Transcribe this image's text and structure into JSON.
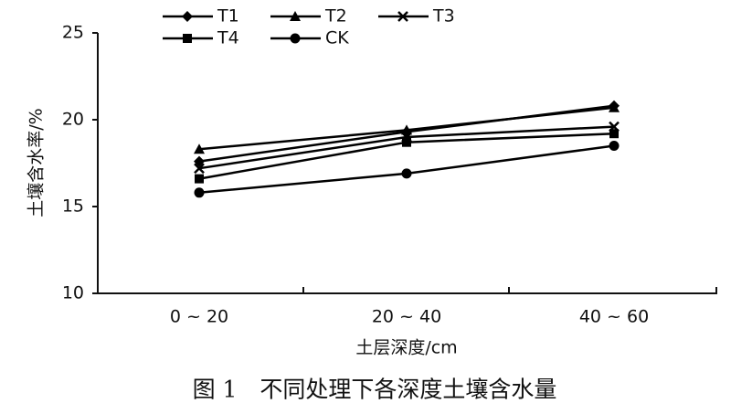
{
  "chart_data": {
    "type": "line",
    "caption": "图 1　不同处理下各深度土壤含水量",
    "xlabel": "土层深度/cm",
    "ylabel": "土壤含水率/%",
    "categories": [
      "0 ~ 20",
      "20 ~ 40",
      "40 ~ 60"
    ],
    "series": [
      {
        "name": "T1",
        "color": "#000000",
        "marker": "diamond",
        "values": [
          17.6,
          19.3,
          20.8
        ]
      },
      {
        "name": "T2",
        "color": "#000000",
        "marker": "triangle",
        "values": [
          18.3,
          19.4,
          20.7
        ]
      },
      {
        "name": "T3",
        "color": "#000000",
        "marker": "x",
        "values": [
          17.2,
          19.0,
          19.6
        ]
      },
      {
        "name": "T4",
        "color": "#000000",
        "marker": "square",
        "values": [
          16.6,
          18.7,
          19.2
        ]
      },
      {
        "name": "CK",
        "color": "#000000",
        "marker": "circle",
        "values": [
          15.8,
          16.9,
          18.5
        ]
      }
    ],
    "ylim": [
      10,
      25
    ],
    "yticks": [
      10,
      15,
      20,
      25
    ],
    "grid": false
  }
}
